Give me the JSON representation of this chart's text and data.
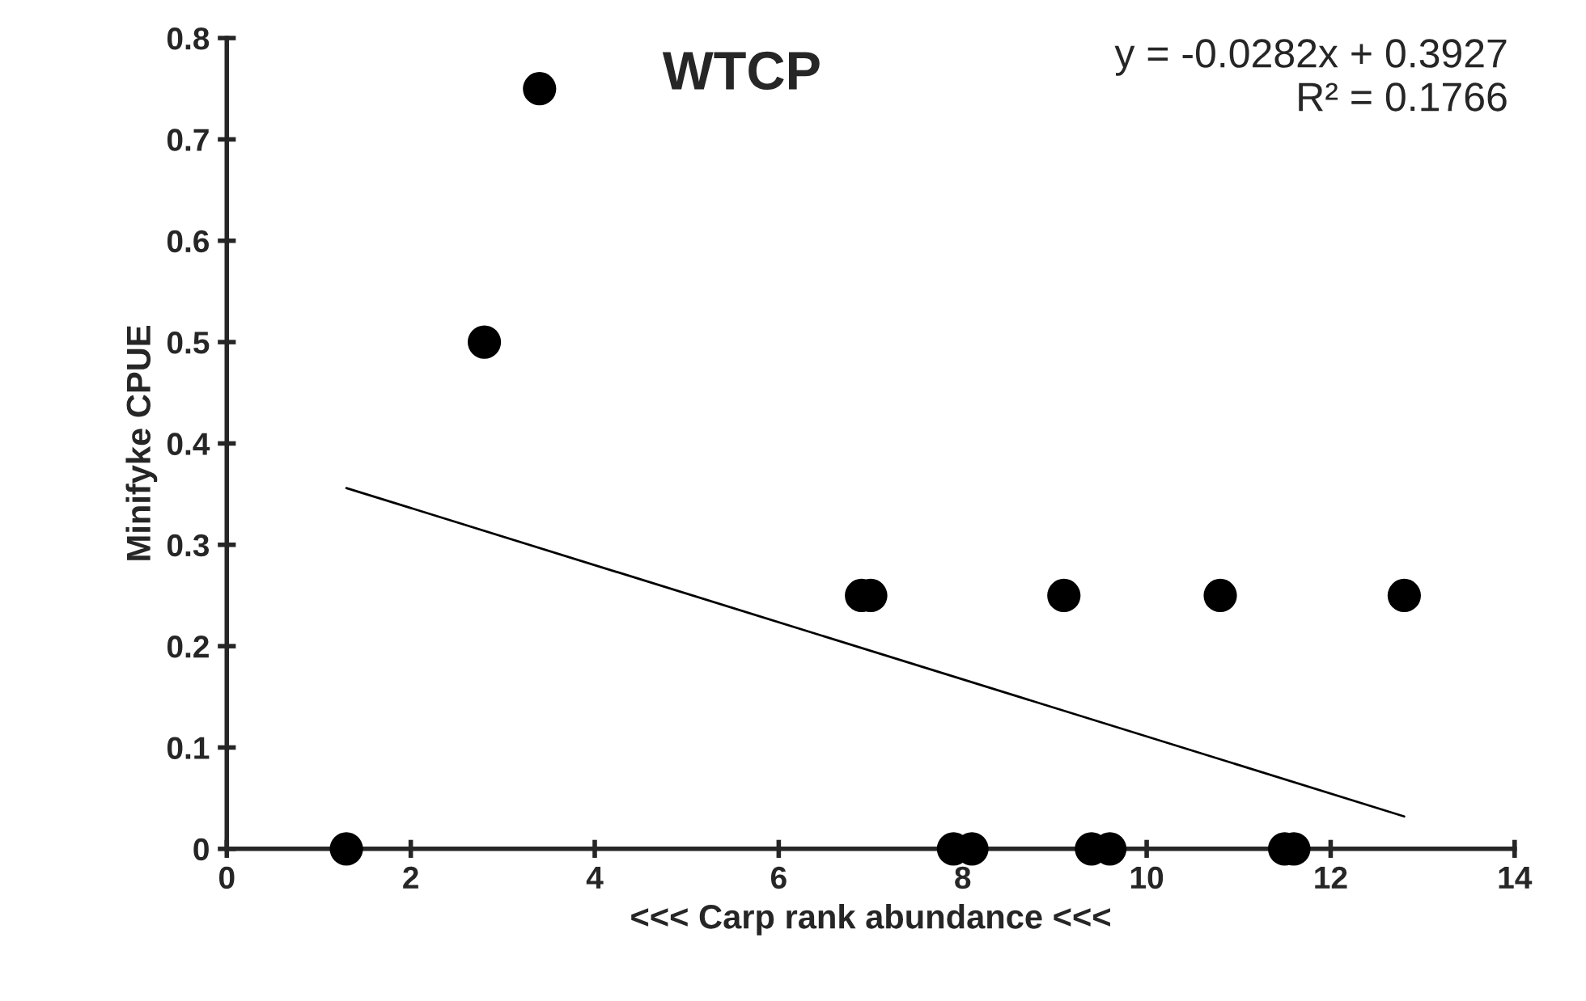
{
  "chart_data": {
    "type": "scatter",
    "title": "WTCP",
    "xlabel": "<<< Carp rank abundance <<<",
    "ylabel": "Minifyke CPUE",
    "annotations": [
      "y = -0.0282x + 0.3927\nR² = 0.1766"
    ],
    "series": [
      {
        "color": "#000000",
        "marker": "circle",
        "x": [
          1.3,
          2.8,
          3.4,
          6.9,
          7.0,
          9.1,
          10.8,
          12.8,
          7.9,
          8.1,
          9.4,
          9.6,
          11.5,
          11.6
        ],
        "values": [
          0,
          0.5,
          0.75,
          0.25,
          0.25,
          0.25,
          0.25,
          0.25,
          0,
          0,
          0,
          0,
          0,
          0
        ]
      },
      {
        "type": "line",
        "color": "#000000",
        "x": [
          1.3,
          12.8
        ],
        "values": [
          0.356,
          0.032
        ]
      }
    ],
    "xlim": [
      0,
      14
    ],
    "xticks": [
      0,
      2,
      4,
      6,
      8,
      10,
      12,
      14
    ],
    "ylim": [
      0,
      0.8
    ],
    "yticks": [
      0,
      0.1,
      0.2,
      0.3,
      0.4,
      0.5,
      0.6,
      0.7,
      0.8
    ],
    "grid": false,
    "legend": false
  }
}
